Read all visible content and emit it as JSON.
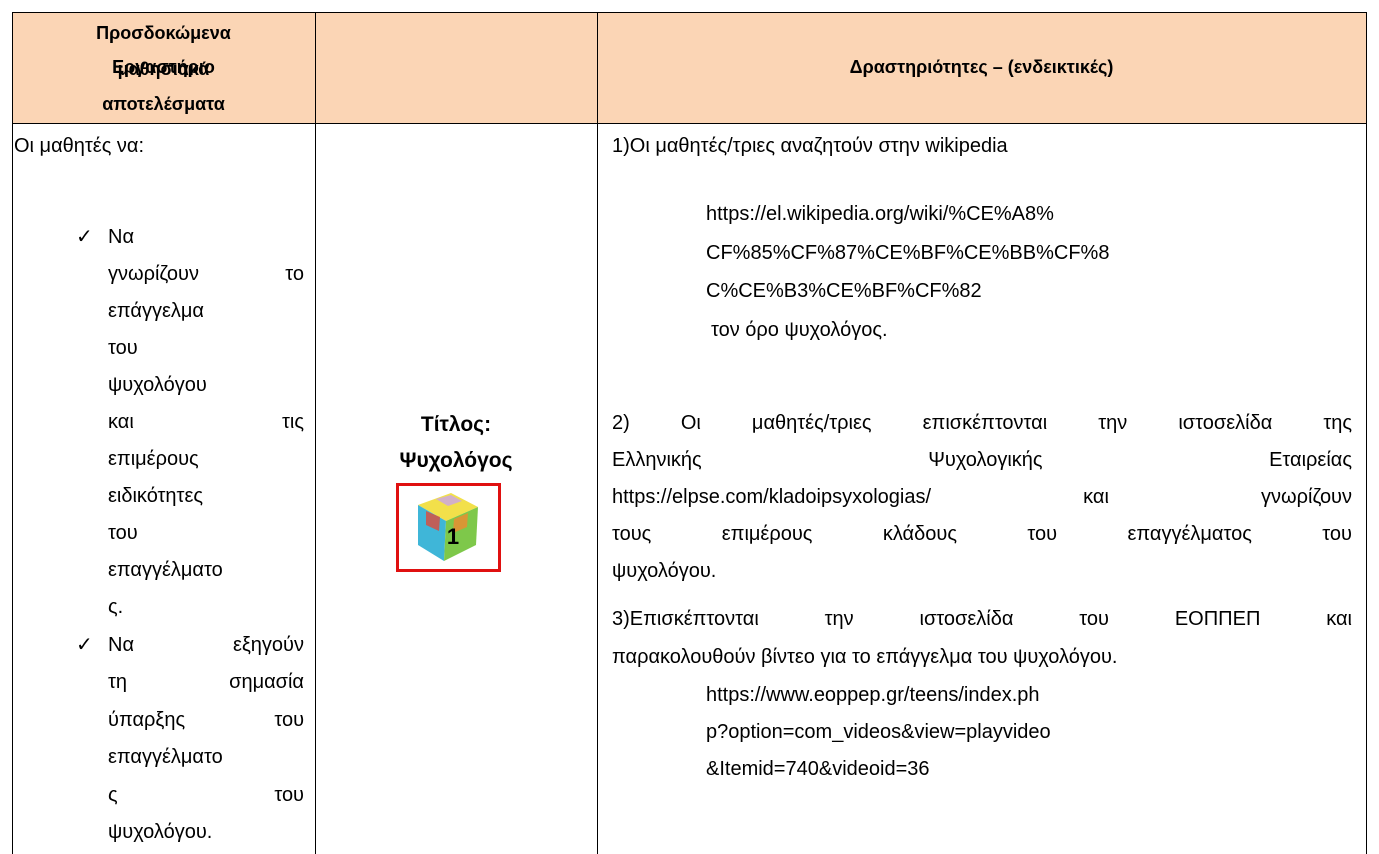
{
  "table": {
    "headers": [
      [
        "Προσδοκώμενα",
        "μαθησιακά",
        "αποτελέσματα"
      ],
      "Εργαστήριο",
      "Δραστηριότητες – (ενδεικτικές)"
    ],
    "outcomes": {
      "intro": "Οι μαθητές να:",
      "bullets": [
        [
          "Να",
          "γνωρίζουν το",
          "επάγγελμα",
          "του",
          "ψυχολόγου",
          "και τις",
          "επιμέρους",
          "ειδικότητες",
          "του",
          "επαγγέλματο",
          "ς."
        ],
        [
          "Να εξηγούν",
          "τη σημασία",
          "ύπαρξης του",
          "επαγγέλματο",
          "ς του",
          "ψυχολόγου."
        ]
      ]
    },
    "workshop": {
      "title_label": "Τίτλος:",
      "title": "Ψυχολόγος",
      "icon_number": "1"
    },
    "activities": {
      "step1": {
        "text": "1)Οι μαθητές/τριες αναζητούν στην wikipedia",
        "url_lines": [
          "https://el.wikipedia.org/wiki/%CE%A8%",
          "CF%85%CF%87%CE%BF%CE%BB%CF%8",
          "C%CE%B3%CE%BF%CF%82"
        ],
        "after": "τον όρο ψυχολόγος."
      },
      "step2": {
        "lines": [
          "2) Οι μαθητές/τριες επισκέπτονται την ιστοσελίδα της",
          "Ελληνικής Ψυχολογικής Εταιρείας",
          "https://elpse.com/kladoipsyxologias/ και γνωρίζουν",
          "τους επιμέρους κλάδους του επαγγέλματος του",
          "ψυχολόγου."
        ]
      },
      "step3": {
        "lines": [
          "3)Επισκέπτονται την ιστοσελίδα του ΕΟΠΠΕΠ και",
          "παρακολουθούν βίντεο για το επάγγελμα του ψυχολόγου."
        ],
        "url_lines": [
          "https://www.eoppep.gr/teens/index.ph",
          "p?option=com_videos&view=playvideo",
          "&Itemid=740&videoid=36"
        ]
      }
    }
  }
}
